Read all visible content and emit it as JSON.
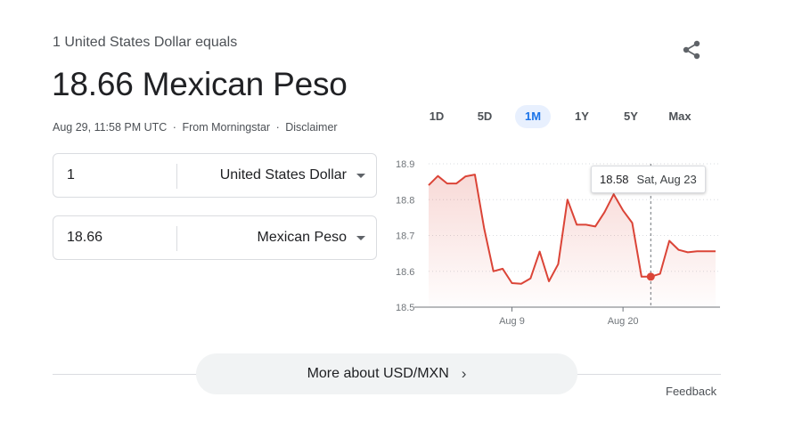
{
  "header": {
    "equals_text": "1 United States Dollar equals",
    "main_value": "18.66 Mexican Peso",
    "timestamp": "Aug 29, 11:58 PM UTC",
    "source": "From Morningstar",
    "disclaimer": "Disclaimer",
    "separator": "·"
  },
  "converter": {
    "from_amount": "1",
    "from_currency": "United States Dollar",
    "to_amount": "18.66",
    "to_currency": "Mexican Peso"
  },
  "range_tabs": [
    {
      "label": "1D",
      "active": false
    },
    {
      "label": "5D",
      "active": false
    },
    {
      "label": "1M",
      "active": true
    },
    {
      "label": "1Y",
      "active": false
    },
    {
      "label": "5Y",
      "active": false
    },
    {
      "label": "Max",
      "active": false
    }
  ],
  "chart_data": {
    "type": "area",
    "x_tick_labels": [
      "Aug 9",
      "Aug 20"
    ],
    "y_ticks": [
      18.5,
      18.6,
      18.7,
      18.8,
      18.9
    ],
    "ylim": [
      18.5,
      18.9
    ],
    "grid": "horizontal-dotted",
    "line_color": "#db4437",
    "values": [
      18.84,
      18.866,
      18.845,
      18.845,
      18.865,
      18.87,
      18.72,
      18.6,
      18.607,
      18.567,
      18.565,
      18.58,
      18.655,
      18.572,
      18.62,
      18.8,
      18.73,
      18.73,
      18.725,
      18.765,
      18.815,
      18.77,
      18.735,
      18.585,
      18.585,
      18.593,
      18.685,
      18.66,
      18.653,
      18.656,
      18.656,
      18.656
    ],
    "highlight_index": 24,
    "tooltip": {
      "value": "18.58",
      "date": "Sat, Aug 23"
    }
  },
  "footer": {
    "more_button_label": "More about USD/MXN",
    "feedback_label": "Feedback"
  },
  "icons": {
    "share": "share-icon",
    "more_chevron": "chevron-right-icon",
    "dropdown_caret": "caret-down-icon"
  }
}
